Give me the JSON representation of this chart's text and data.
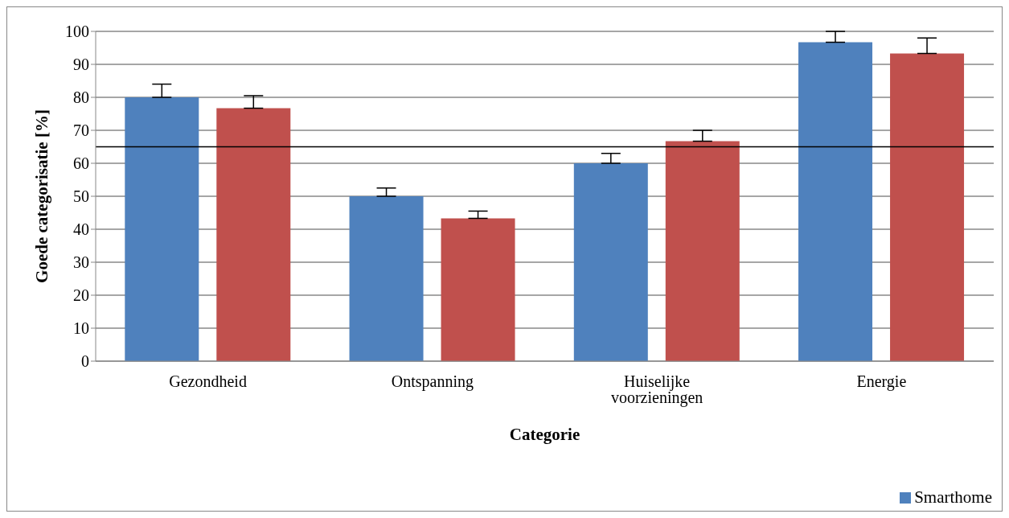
{
  "chart_data": {
    "type": "bar",
    "xlabel": "Categorie",
    "ylabel": "Goede categorisatie [%]",
    "categories": [
      "Gezondheid",
      "Ontspanning",
      "Huiselijke voorzieningen",
      "Energie"
    ],
    "series": [
      {
        "name": "Smarthome",
        "color": "#4f81bd",
        "values": [
          80,
          50,
          60,
          96.7
        ],
        "errors": [
          [
            80,
            84
          ],
          [
            50,
            52.5
          ],
          [
            60,
            63
          ],
          [
            96.7,
            100
          ]
        ]
      },
      {
        "color": "#c0504d",
        "values": [
          76.7,
          43.3,
          66.7,
          93.3
        ],
        "errors": [
          [
            76.7,
            80.5
          ],
          [
            43.3,
            45.5
          ],
          [
            66.7,
            70
          ],
          [
            93.3,
            98
          ]
        ]
      }
    ],
    "ylim": [
      0,
      100
    ],
    "yticks": [
      0,
      10,
      20,
      30,
      40,
      50,
      60,
      70,
      80,
      90,
      100
    ],
    "grid": "y",
    "legend": "bottom right",
    "ref_lines": [
      {
        "axis": "y",
        "value": 65,
        "color": "#000000"
      }
    ]
  }
}
